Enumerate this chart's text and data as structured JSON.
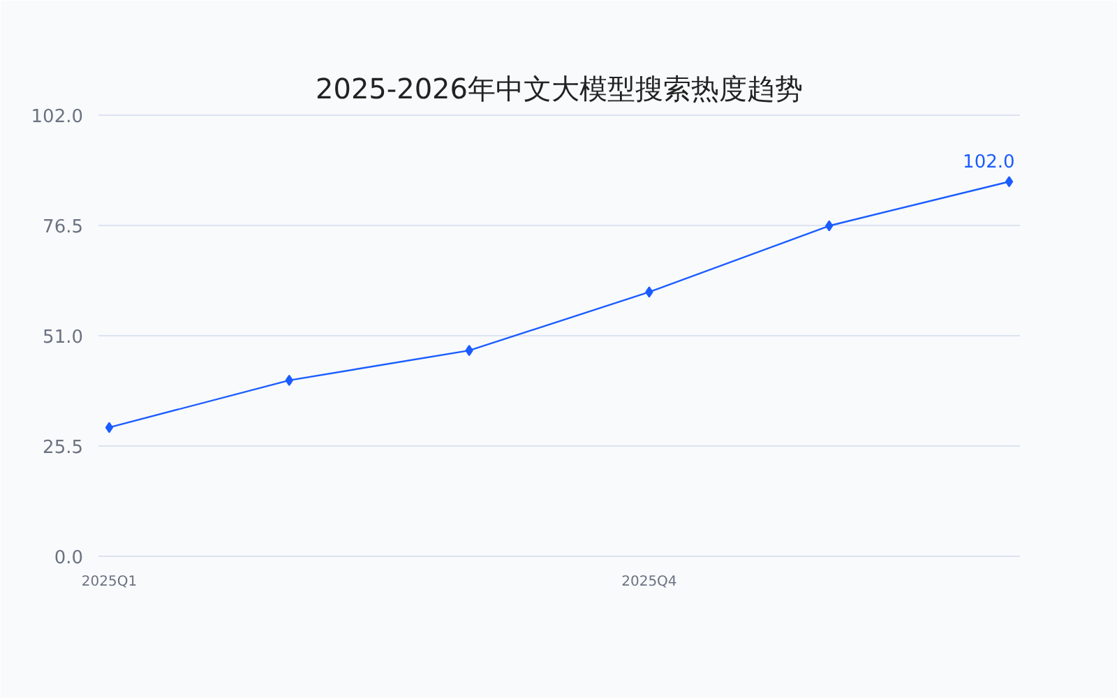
{
  "chart_data": {
    "type": "line",
    "title": "2025-2026年中文大模型搜索热度趋势",
    "categories": [
      "2025Q1",
      null,
      null,
      "2025Q4",
      null,
      null
    ],
    "series": [
      {
        "color": "#1a5cff",
        "values": [
          29.8,
          40.7,
          47.6,
          61.1,
          76.4,
          86.6
        ]
      }
    ],
    "ylim": [
      0,
      102
    ],
    "yticks": [
      {
        "value": 0,
        "label": "0.0"
      },
      25.5,
      {
        "value": 51,
        "label": "51.0"
      },
      76.5,
      {
        "value": 102,
        "label": "102.0"
      }
    ],
    "grid": "y",
    "marker": "diamond",
    "line_style": "solid",
    "annotations": [
      {
        "text": "102.0",
        "y": 86.6
      }
    ]
  }
}
